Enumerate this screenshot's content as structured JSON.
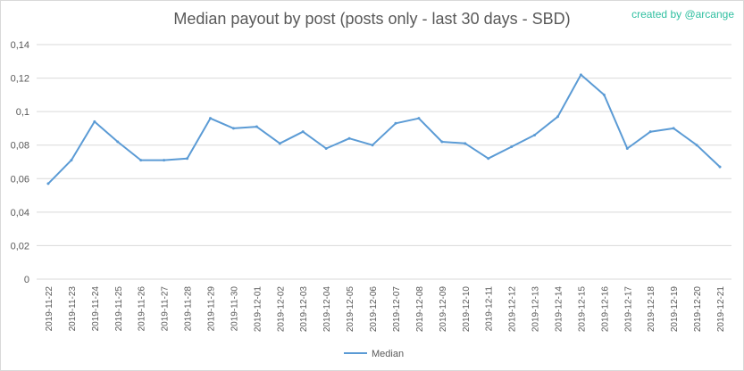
{
  "header": {
    "title": "Median payout by post (posts only - last 30 days - SBD)",
    "credit": "created by @arcange"
  },
  "colors": {
    "series": "#5b9bd5",
    "grid": "#d9d9d9",
    "axis_text": "#595959",
    "credit": "#2fbfa0"
  },
  "chart_data": {
    "type": "line",
    "title": "Median payout by post (posts only - last 30 days - SBD)",
    "xlabel": "",
    "ylabel": "",
    "ylim": [
      0,
      0.14
    ],
    "grid": true,
    "legend_position": "bottom",
    "y_ticks": [
      0,
      0.02,
      0.04,
      0.06,
      0.08,
      0.1,
      0.12,
      0.14
    ],
    "y_tick_labels": [
      "0",
      "0,02",
      "0,04",
      "0,06",
      "0,08",
      "0,1",
      "0,12",
      "0,14"
    ],
    "categories": [
      "2019-11-22",
      "2019-11-23",
      "2019-11-24",
      "2019-11-25",
      "2019-11-26",
      "2019-11-27",
      "2019-11-28",
      "2019-11-29",
      "2019-11-30",
      "2019-12-01",
      "2019-12-02",
      "2019-12-03",
      "2019-12-04",
      "2019-12-05",
      "2019-12-06",
      "2019-12-07",
      "2019-12-08",
      "2019-12-09",
      "2019-12-10",
      "2019-12-11",
      "2019-12-12",
      "2019-12-13",
      "2019-12-14",
      "2019-12-15",
      "2019-12-16",
      "2019-12-17",
      "2019-12-18",
      "2019-12-19",
      "2019-12-20",
      "2019-12-21"
    ],
    "series": [
      {
        "name": "Median",
        "values": [
          0.057,
          0.071,
          0.094,
          0.082,
          0.071,
          0.071,
          0.072,
          0.096,
          0.09,
          0.091,
          0.081,
          0.088,
          0.078,
          0.084,
          0.08,
          0.093,
          0.096,
          0.082,
          0.081,
          0.072,
          0.079,
          0.086,
          0.097,
          0.122,
          0.11,
          0.078,
          0.088,
          0.09,
          0.08,
          0.067
        ]
      }
    ]
  }
}
